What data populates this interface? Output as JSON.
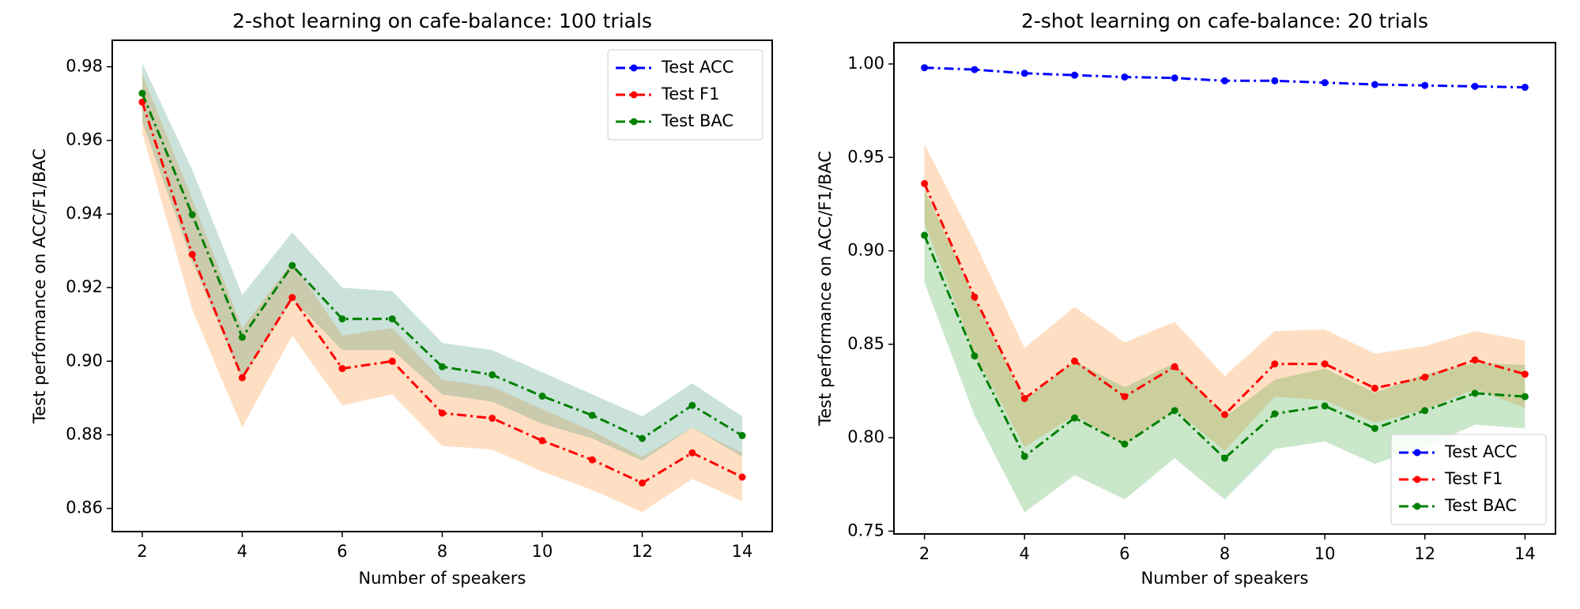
{
  "chart_data": [
    {
      "type": "line",
      "title": "2-shot learning on cafe-balance: 100 trials",
      "x_label": "Number of speakers",
      "y_label": "Test performance on ACC/F1/BAC",
      "x": [
        2,
        3,
        4,
        5,
        6,
        7,
        8,
        9,
        10,
        11,
        12,
        13,
        14
      ],
      "xlim": [
        1.4,
        14.6
      ],
      "xticks": [
        2,
        4,
        6,
        8,
        10,
        12,
        14
      ],
      "ylim": [
        0.8537,
        0.9872
      ],
      "yticks": [
        0.86,
        0.88,
        {
          "value": 0.9,
          "label": "0.90"
        },
        0.92,
        0.94,
        0.96,
        0.98
      ],
      "legend": "upper right",
      "series": [
        {
          "name": "Test ACC",
          "color": "#0000ff",
          "values": [
            null,
            null,
            null,
            null,
            null,
            null,
            null,
            null,
            null,
            null,
            null,
            null,
            null
          ]
        },
        {
          "name": "Test F1",
          "color": "#ff0000",
          "band_color": "#ff7f0e",
          "values": [
            0.9704,
            0.929,
            0.8955,
            0.9173,
            0.898,
            0.9,
            0.8859,
            0.8845,
            0.8784,
            0.8732,
            0.8669,
            0.8751,
            0.8685
          ],
          "lower": [
            0.962,
            0.914,
            0.882,
            0.907,
            0.888,
            0.891,
            0.877,
            0.876,
            0.87,
            0.865,
            0.859,
            0.868,
            0.862
          ],
          "upper": [
            0.978,
            0.944,
            0.909,
            0.927,
            0.907,
            0.909,
            0.895,
            0.893,
            0.887,
            0.881,
            0.874,
            0.882,
            0.875
          ]
        },
        {
          "name": "Test BAC",
          "color": "#008000",
          "band_color": "#2a8a6a",
          "values": [
            0.9728,
            0.9398,
            0.9065,
            0.926,
            0.9115,
            0.9115,
            0.8985,
            0.8963,
            0.8905,
            0.8853,
            0.879,
            0.888,
            0.8798
          ],
          "lower": [
            0.965,
            0.927,
            0.895,
            0.917,
            0.903,
            0.903,
            0.891,
            0.889,
            0.883,
            0.879,
            0.873,
            0.882,
            0.874
          ],
          "upper": [
            0.981,
            0.952,
            0.918,
            0.935,
            0.92,
            0.919,
            0.905,
            0.903,
            0.897,
            0.891,
            0.885,
            0.894,
            0.885
          ]
        }
      ]
    },
    {
      "type": "line",
      "title": "2-shot learning on cafe-balance: 20 trials",
      "x_label": "Number of speakers",
      "y_label": "Test performance on ACC/F1/BAC",
      "x": [
        2,
        3,
        4,
        5,
        6,
        7,
        8,
        9,
        10,
        11,
        12,
        13,
        14
      ],
      "xlim": [
        1.39,
        14.61
      ],
      "xticks": [
        2,
        4,
        6,
        8,
        10,
        12,
        14
      ],
      "ylim": [
        0.7485,
        1.0114
      ],
      "yticks": [
        0.75,
        {
          "value": 0.8,
          "label": "0.80"
        },
        0.85,
        {
          "value": 0.9,
          "label": "0.90"
        },
        0.95,
        {
          "value": 1,
          "label": "1.00"
        }
      ],
      "legend": "lower right",
      "series": [
        {
          "name": "Test ACC",
          "color": "#0000ff",
          "values": [
            0.998,
            0.997,
            0.995,
            0.994,
            0.993,
            0.9925,
            0.991,
            0.991,
            0.99,
            0.989,
            0.9885,
            0.988,
            0.9875
          ]
        },
        {
          "name": "Test F1",
          "color": "#ff0000",
          "band_color": "#ff7f0e",
          "values": [
            0.936,
            0.8753,
            0.821,
            0.841,
            0.822,
            0.838,
            0.8124,
            0.8395,
            0.8395,
            0.8265,
            0.8324,
            0.8416,
            0.834
          ],
          "lower": [
            0.915,
            0.845,
            0.795,
            0.812,
            0.796,
            0.815,
            0.793,
            0.822,
            0.82,
            0.808,
            0.815,
            0.826,
            0.816
          ],
          "upper": [
            0.957,
            0.905,
            0.848,
            0.87,
            0.851,
            0.862,
            0.833,
            0.857,
            0.858,
            0.845,
            0.849,
            0.857,
            0.852
          ]
        },
        {
          "name": "Test BAC",
          "color": "#008000",
          "band_color": "#2ca02c",
          "values": [
            0.9083,
            0.8438,
            0.79,
            0.8106,
            0.7966,
            0.8145,
            0.789,
            0.8128,
            0.817,
            0.805,
            0.8145,
            0.8238,
            0.822
          ],
          "lower": [
            0.883,
            0.812,
            0.76,
            0.78,
            0.767,
            0.789,
            0.767,
            0.794,
            0.798,
            0.786,
            0.795,
            0.807,
            0.805
          ],
          "upper": [
            0.933,
            0.875,
            0.82,
            0.841,
            0.827,
            0.84,
            0.811,
            0.831,
            0.837,
            0.824,
            0.834,
            0.84,
            0.839
          ]
        }
      ]
    }
  ]
}
